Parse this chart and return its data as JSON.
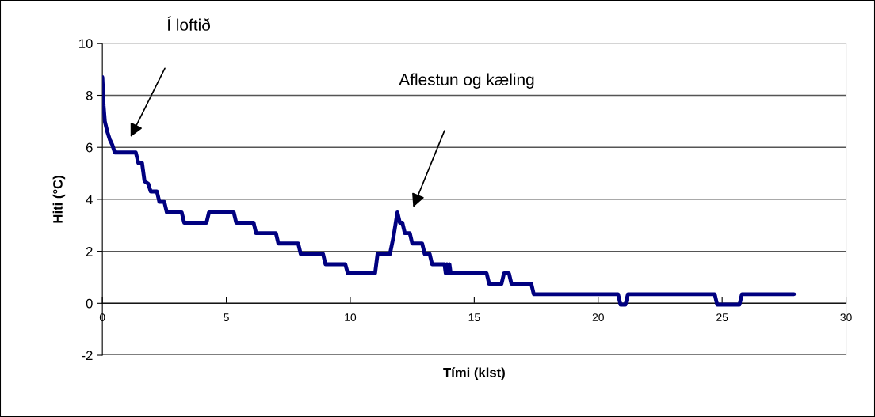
{
  "chart_data": {
    "type": "line",
    "xlabel": "Tími (klst)",
    "ylabel": "Hiti (°C)",
    "xlim": [
      0,
      30
    ],
    "xticks": [
      0,
      5,
      10,
      15,
      20,
      25,
      30
    ],
    "ylim": [
      -2,
      10
    ],
    "yticks": [
      -2,
      0,
      2,
      4,
      6,
      8,
      10
    ],
    "grid": "y",
    "marker": "none",
    "line_style": "solid",
    "series": [
      {
        "color": "#000080",
        "x": [
          0,
          0.05,
          0.1,
          0.2,
          0.3,
          0.4,
          0.5,
          1.35,
          1.45,
          1.6,
          1.7,
          1.85,
          1.95,
          2.2,
          2.3,
          2.5,
          2.6,
          3.2,
          3.3,
          4.2,
          4.3,
          5.3,
          5.4,
          6.1,
          6.2,
          7.0,
          7.1,
          7.9,
          8.0,
          8.9,
          9.0,
          9.8,
          9.9,
          11.0,
          11.1,
          11.6,
          11.75,
          11.9,
          12.0,
          12.1,
          12.2,
          12.4,
          12.5,
          12.9,
          13.0,
          13.2,
          13.3,
          13.8,
          13.85,
          13.9,
          13.95,
          14.0,
          14.05,
          15.5,
          15.6,
          16.1,
          16.2,
          16.4,
          16.5,
          17.3,
          17.4,
          20.8,
          20.9,
          21.1,
          21.2,
          24.7,
          24.8,
          25.7,
          25.8,
          27.9
        ],
        "values": [
          8.7,
          7.6,
          7.0,
          6.6,
          6.3,
          6.1,
          5.8,
          5.8,
          5.4,
          5.4,
          4.7,
          4.6,
          4.3,
          4.3,
          3.9,
          3.9,
          3.5,
          3.5,
          3.1,
          3.1,
          3.5,
          3.5,
          3.1,
          3.1,
          2.7,
          2.7,
          2.3,
          2.3,
          1.9,
          1.9,
          1.5,
          1.5,
          1.15,
          1.15,
          1.9,
          1.9,
          2.6,
          3.5,
          3.1,
          3.1,
          2.7,
          2.7,
          2.3,
          2.3,
          1.9,
          1.9,
          1.5,
          1.5,
          1.15,
          1.5,
          1.15,
          1.5,
          1.15,
          1.15,
          0.75,
          0.75,
          1.15,
          1.15,
          0.75,
          0.75,
          0.35,
          0.35,
          -0.05,
          -0.05,
          0.35,
          0.35,
          -0.05,
          -0.05,
          0.35,
          0.35
        ]
      }
    ],
    "annotations": [
      "Í loftið",
      "Aflestun og kæling"
    ]
  }
}
